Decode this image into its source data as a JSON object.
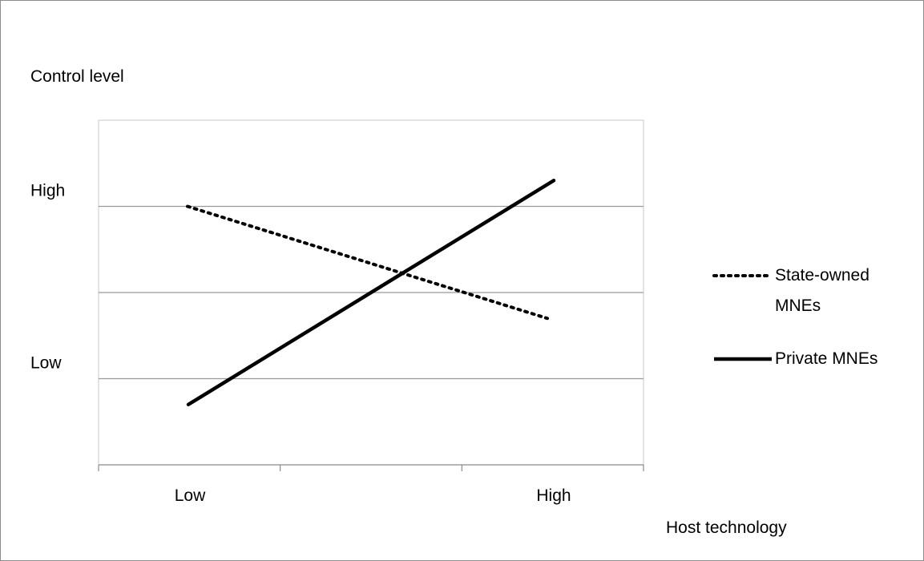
{
  "chart_data": {
    "type": "line",
    "title": "",
    "ylabel": "Control level",
    "xlabel": "Host technology",
    "categories": [
      "Low",
      "High"
    ],
    "y_tick_labels": [
      "High",
      "Low"
    ],
    "ylim": [
      0,
      4
    ],
    "y_tick_values": [
      3,
      1
    ],
    "grid": true,
    "legend_position": "right",
    "series": [
      {
        "name": "State-owned MNEs",
        "style": "dotted",
        "color": "#000000",
        "values": [
          3.0,
          1.7
        ]
      },
      {
        "name": "Private MNEs",
        "style": "solid",
        "color": "#000000",
        "values": [
          0.7,
          3.3
        ]
      }
    ]
  }
}
